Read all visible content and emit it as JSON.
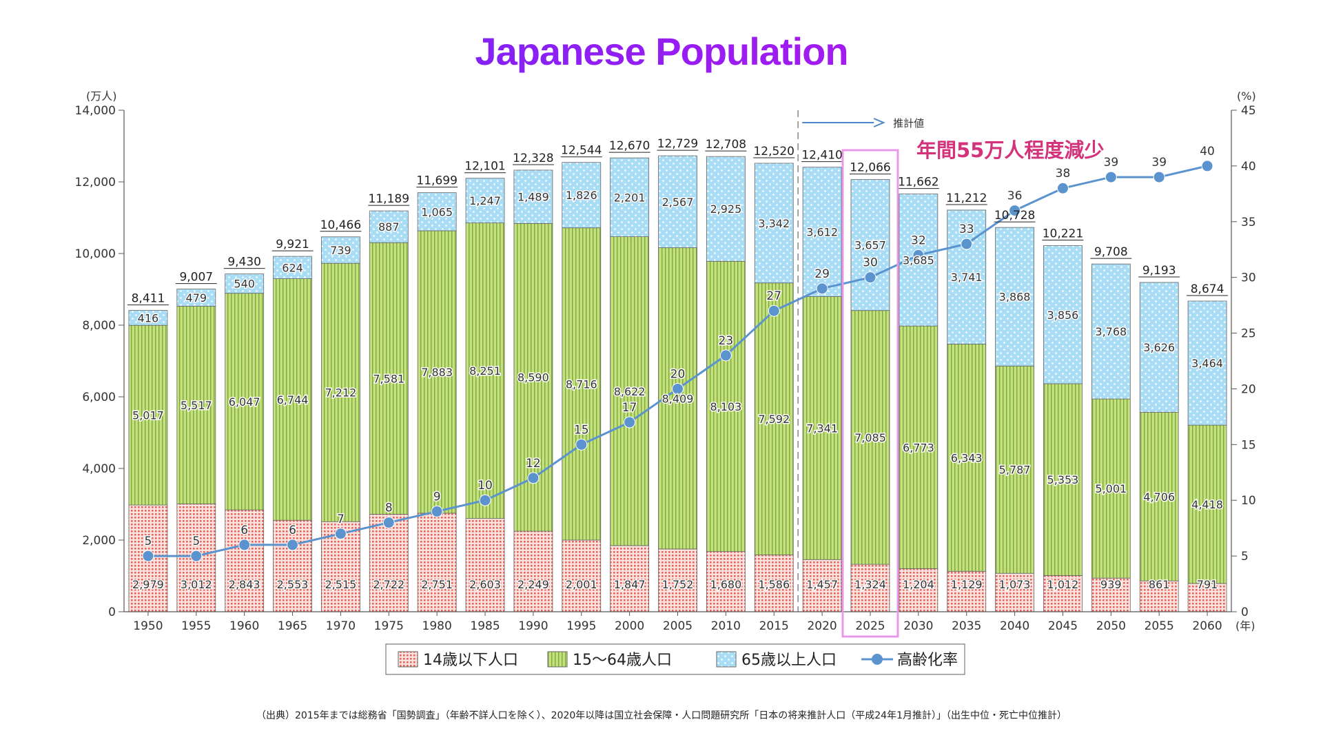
{
  "title": "Japanese Population",
  "footnote": "（出典）2015年までは総務省「国勢調査」（年齢不詳人口を除く）、2020年以降は国立社会保障・人口問題研究所「日本の将来推計人口（平成24年1月推計）」（出生中位・死亡中位推計）",
  "annotations": {
    "projection": "推計値",
    "highlight": "年間55万人程度減少",
    "highlight_year": "2025"
  },
  "colors": {
    "under15": "#f2a7a0",
    "age15_64": "#b9d96e",
    "over65": "#a9dcf5",
    "rate": "#5b93cf",
    "highlight": "#e89ae8",
    "highlight_text": "#d2337a"
  },
  "chart_data": {
    "type": "bar",
    "stacked": true,
    "categories": [
      "1950",
      "1955",
      "1960",
      "1965",
      "1970",
      "1975",
      "1980",
      "1985",
      "1990",
      "1995",
      "2000",
      "2005",
      "2010",
      "2015",
      "2020",
      "2025",
      "2030",
      "2035",
      "2040",
      "2045",
      "2050",
      "2055",
      "2060"
    ],
    "series": [
      {
        "name": "14歳以下人口",
        "values": [
          2979,
          3012,
          2843,
          2553,
          2515,
          2722,
          2751,
          2603,
          2249,
          2001,
          1847,
          1752,
          1680,
          1586,
          1457,
          1324,
          1204,
          1129,
          1073,
          1012,
          939,
          861,
          791
        ]
      },
      {
        "name": "15～64歳人口",
        "values": [
          5017,
          5517,
          6047,
          6744,
          7212,
          7581,
          7883,
          8251,
          8590,
          8716,
          8622,
          8409,
          8103,
          7592,
          7341,
          7085,
          6773,
          6343,
          5787,
          5353,
          5001,
          4706,
          4418
        ]
      },
      {
        "name": "65歳以上人口",
        "values": [
          416,
          479,
          540,
          624,
          739,
          887,
          1065,
          1247,
          1489,
          1826,
          2201,
          2567,
          2925,
          3342,
          3612,
          3657,
          3685,
          3741,
          3868,
          3856,
          3768,
          3626,
          3464
        ]
      }
    ],
    "totals": [
      8411,
      9007,
      9430,
      9921,
      10466,
      11189,
      11699,
      12101,
      12328,
      12544,
      12670,
      12729,
      12708,
      12520,
      12410,
      12066,
      11662,
      11212,
      10728,
      10221,
      9708,
      9193,
      8674
    ],
    "line_series": {
      "name": "高齢化率",
      "values": [
        5,
        5,
        6,
        6,
        7,
        8,
        9,
        10,
        12,
        15,
        17,
        20,
        23,
        27,
        29,
        30,
        32,
        33,
        36,
        38,
        39,
        39,
        40
      ],
      "axis": "right"
    },
    "y_left": {
      "label": "(万人)",
      "ylim": [
        0,
        14000
      ],
      "ticks": [
        0,
        2000,
        4000,
        6000,
        8000,
        10000,
        12000,
        14000
      ],
      "tick_labels": [
        "0",
        "2,000",
        "4,000",
        "6,000",
        "8,000",
        "10,000",
        "12,000",
        "14,000"
      ]
    },
    "y_right": {
      "label": "(%)",
      "ylim": [
        0,
        45
      ],
      "ticks": [
        0,
        5,
        10,
        15,
        20,
        25,
        30,
        35,
        40,
        45
      ]
    },
    "x_unit": "(年)",
    "projection_start": "2020",
    "legend_position": "bottom"
  }
}
